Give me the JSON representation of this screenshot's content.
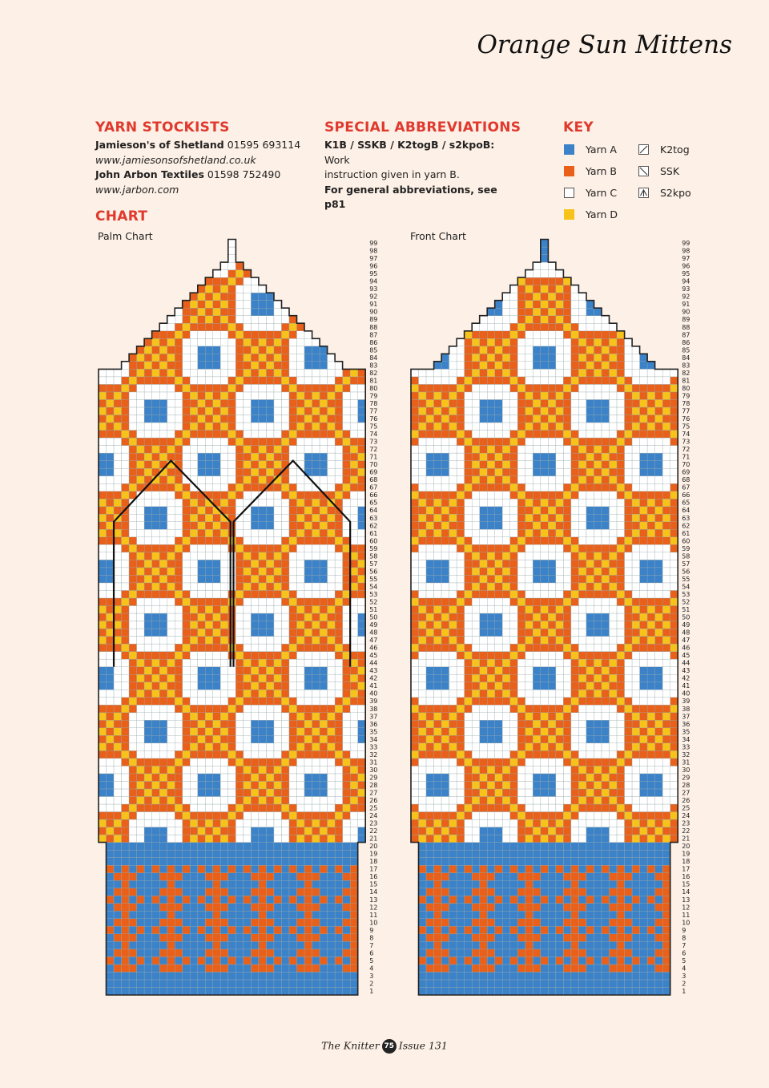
{
  "title": "Orange Sun Mittens",
  "stockists": {
    "heading": "YARN STOCKISTS",
    "lines": [
      {
        "name": "Jamieson's of Shetland",
        "phone": "01595 693114"
      },
      {
        "url": "www.jamiesonsofshetland.co.uk"
      },
      {
        "name": "John Arbon Textiles",
        "phone": "01598 752490"
      },
      {
        "url": "www.jarbon.com"
      }
    ]
  },
  "abbreviations": {
    "heading": "SPECIAL ABBREVIATIONS",
    "term": "K1B / SSKB / K2togB / s2kpoB:",
    "definition_a": "Work",
    "definition_b": "instruction given in yarn B.",
    "general": "For general abbreviations, see p81"
  },
  "key": {
    "heading": "KEY",
    "yarns": [
      {
        "label": "Yarn A",
        "color": "#3b82c8"
      },
      {
        "label": "Yarn B",
        "color": "#e8601a"
      },
      {
        "label": "Yarn C",
        "color": "#ffffff"
      },
      {
        "label": "Yarn D",
        "color": "#f7c21a"
      }
    ],
    "symbols": [
      {
        "label": "K2tog",
        "icon": "k2tog-icon"
      },
      {
        "label": "SSK",
        "icon": "ssk-icon"
      },
      {
        "label": "S2kpo",
        "icon": "s2kpo-icon"
      }
    ]
  },
  "chart_heading": "CHART",
  "charts": [
    {
      "label": "Palm Chart"
    },
    {
      "label": "Front Chart"
    }
  ],
  "chart_data": {
    "type": "table",
    "rows": 99,
    "stitches": 35,
    "row_numbers_shown": "1-99",
    "cuff_rows": "1-20",
    "hand_rows": "21-99",
    "colors": {
      "A": "#3b82c8",
      "B": "#e8601a",
      "C": "#ffffff",
      "D": "#f7c21a"
    }
  },
  "footer": {
    "magazine": "The Knitter",
    "page": "75",
    "issue": "Issue 131"
  }
}
